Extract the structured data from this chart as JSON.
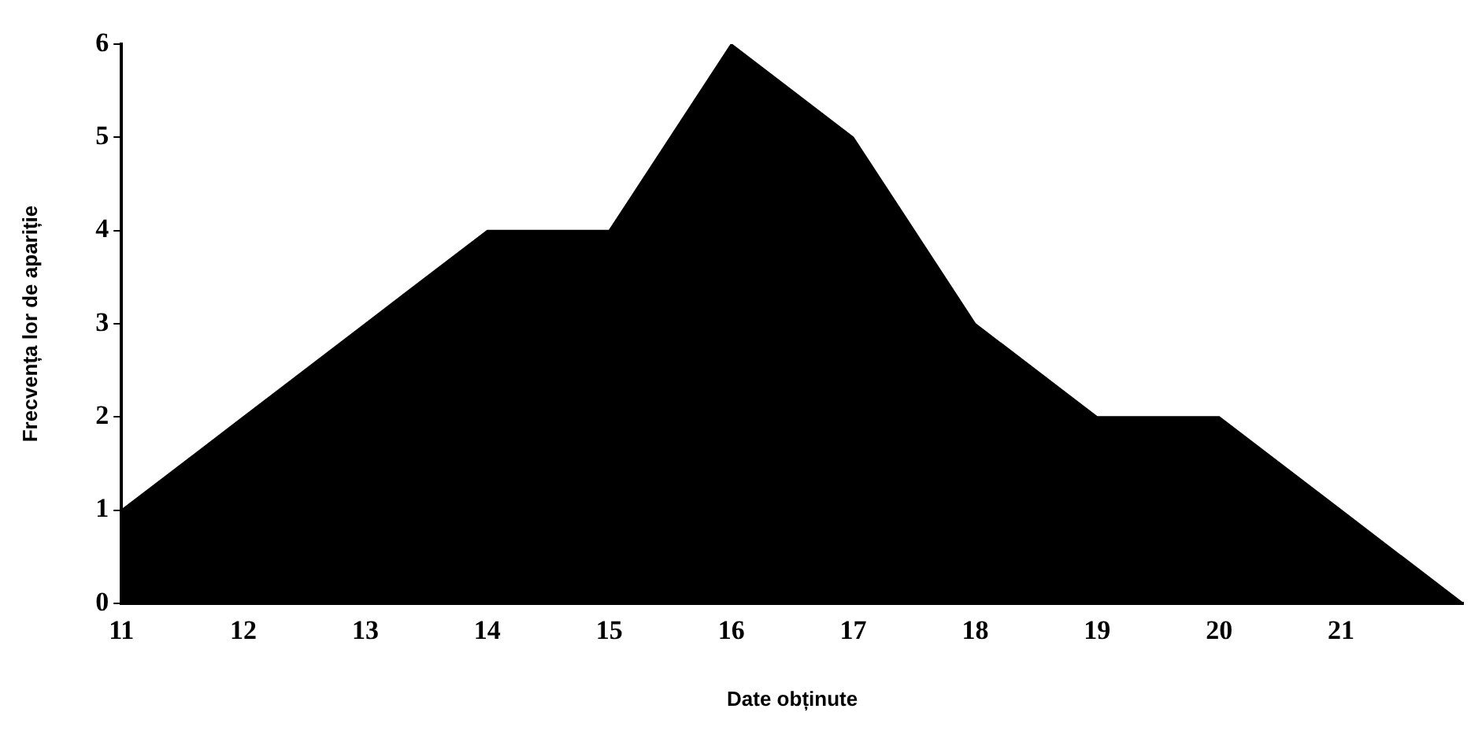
{
  "chart_data": {
    "type": "area",
    "xlabel": "Date obținute",
    "ylabel": "Frecvența lor de apariție",
    "x": [
      11,
      12,
      13,
      14,
      15,
      16,
      17,
      18,
      19,
      20,
      21,
      22
    ],
    "series": [
      {
        "color": "#000000",
        "values": [
          1,
          2,
          3,
          4,
          4,
          6,
          5,
          3,
          2,
          2,
          1,
          0
        ]
      }
    ],
    "xlim": [
      11,
      22
    ],
    "xticks": [
      11,
      12,
      13,
      14,
      15,
      16,
      17,
      18,
      19,
      20,
      21
    ],
    "ylim": [
      0,
      6
    ],
    "yticks": [
      0,
      1,
      2,
      3,
      4,
      5,
      6
    ],
    "grid": false,
    "legend": false
  }
}
